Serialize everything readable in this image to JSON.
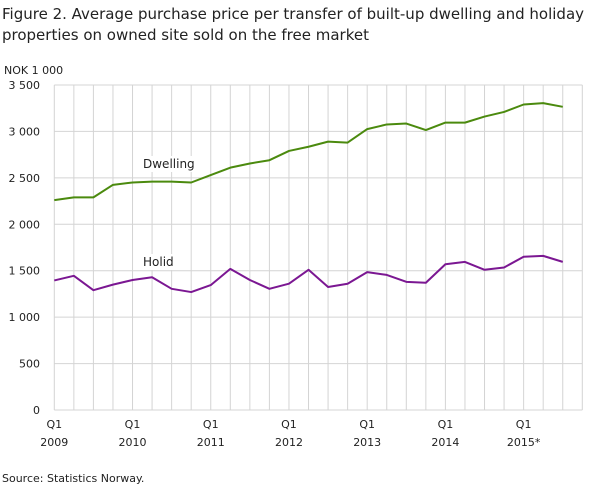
{
  "chart_data": {
    "type": "line",
    "title": "Figure 2. Average purchase price per transfer of built-up dwelling and holiday properties on owned site sold on the free market",
    "ylabel": "NOK 1 000",
    "xlabel": "",
    "ylim": [
      0,
      3500
    ],
    "yticks": [
      0,
      500,
      1000,
      1500,
      2000,
      2500,
      3000,
      3500
    ],
    "ytick_labels": [
      "0",
      "500",
      "1 000",
      "1 500",
      "2 000",
      "2 500",
      "3 000",
      "3 500"
    ],
    "xtick_labels": [
      {
        "index": 0,
        "quarter": "Q1",
        "year": "2009"
      },
      {
        "index": 4,
        "quarter": "Q1",
        "year": "2010"
      },
      {
        "index": 8,
        "quarter": "Q1",
        "year": "2011"
      },
      {
        "index": 12,
        "quarter": "Q1",
        "year": "2012"
      },
      {
        "index": 16,
        "quarter": "Q1",
        "year": "2013"
      },
      {
        "index": 20,
        "quarter": "Q1",
        "year": "2014"
      },
      {
        "index": 24,
        "quarter": "Q1",
        "year": "2015*"
      }
    ],
    "x": [
      "2009Q1",
      "2009Q2",
      "2009Q3",
      "2009Q4",
      "2010Q1",
      "2010Q2",
      "2010Q3",
      "2010Q4",
      "2011Q1",
      "2011Q2",
      "2011Q3",
      "2011Q4",
      "2012Q1",
      "2012Q2",
      "2012Q3",
      "2012Q4",
      "2013Q1",
      "2013Q2",
      "2013Q3",
      "2013Q4",
      "2014Q1",
      "2014Q2",
      "2014Q3",
      "2014Q4",
      "2015Q1",
      "2015Q2",
      "2015Q3"
    ],
    "grid": true,
    "series": [
      {
        "name": "Dwelling",
        "color": "#4b8a0e",
        "values": [
          2260,
          2290,
          2290,
          2425,
          2450,
          2460,
          2460,
          2450,
          2530,
          2610,
          2655,
          2690,
          2790,
          2835,
          2890,
          2880,
          3025,
          3075,
          3085,
          3015,
          3095,
          3095,
          3160,
          3210,
          3290,
          3305,
          3265
        ]
      },
      {
        "name": "Holid",
        "color": "#7b1792",
        "values": [
          1395,
          1445,
          1290,
          1350,
          1400,
          1430,
          1305,
          1270,
          1345,
          1520,
          1400,
          1305,
          1360,
          1510,
          1325,
          1360,
          1485,
          1455,
          1380,
          1370,
          1570,
          1595,
          1510,
          1535,
          1650,
          1660,
          1595
        ]
      }
    ]
  },
  "source": "Source: Statistics Norway."
}
